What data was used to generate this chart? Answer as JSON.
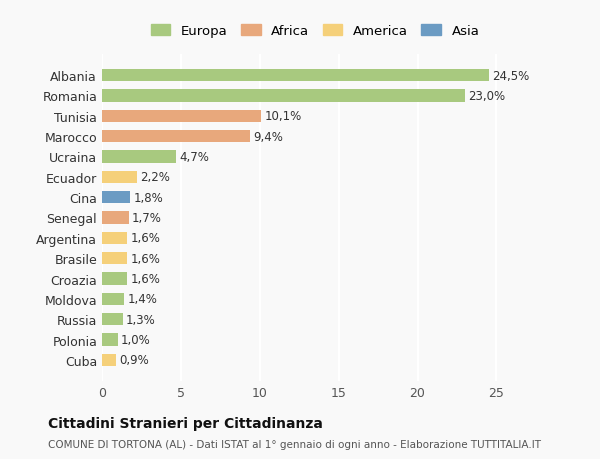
{
  "countries": [
    "Albania",
    "Romania",
    "Tunisia",
    "Marocco",
    "Ucraina",
    "Ecuador",
    "Cina",
    "Senegal",
    "Argentina",
    "Brasile",
    "Croazia",
    "Moldova",
    "Russia",
    "Polonia",
    "Cuba"
  ],
  "values": [
    24.5,
    23.0,
    10.1,
    9.4,
    4.7,
    2.2,
    1.8,
    1.7,
    1.6,
    1.6,
    1.6,
    1.4,
    1.3,
    1.0,
    0.9
  ],
  "labels": [
    "24,5%",
    "23,0%",
    "10,1%",
    "9,4%",
    "4,7%",
    "2,2%",
    "1,8%",
    "1,7%",
    "1,6%",
    "1,6%",
    "1,6%",
    "1,4%",
    "1,3%",
    "1,0%",
    "0,9%"
  ],
  "colors": [
    "#a8c97f",
    "#a8c97f",
    "#e8a87c",
    "#e8a87c",
    "#a8c97f",
    "#f5d07a",
    "#6b9bc3",
    "#e8a87c",
    "#f5d07a",
    "#f5d07a",
    "#a8c97f",
    "#a8c97f",
    "#a8c97f",
    "#a8c97f",
    "#f5d07a"
  ],
  "legend_names": [
    "Europa",
    "Africa",
    "America",
    "Asia"
  ],
  "legend_colors": [
    "#a8c97f",
    "#e8a87c",
    "#f5d07a",
    "#6b9bc3"
  ],
  "title": "Cittadini Stranieri per Cittadinanza",
  "subtitle": "COMUNE DI TORTONA (AL) - Dati ISTAT al 1° gennaio di ogni anno - Elaborazione TUTTITALIA.IT",
  "xlim": [
    0,
    27
  ],
  "xticks": [
    0,
    5,
    10,
    15,
    20,
    25
  ],
  "background_color": "#f9f9f9",
  "plot_bg": "#f9f9f9",
  "grid_color": "#ffffff"
}
